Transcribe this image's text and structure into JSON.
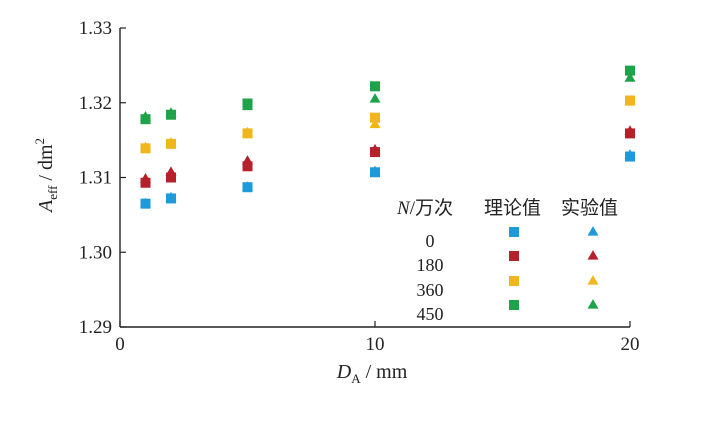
{
  "chart_data": {
    "type": "scatter",
    "xlabel": {
      "var": "D",
      "sub": "A",
      "unit": " / mm"
    },
    "ylabel": {
      "var": "A",
      "sub": "eff",
      "unit": " / dm",
      "sup": "2"
    },
    "xlim": [
      0,
      20
    ],
    "ylim": [
      1.29,
      1.33
    ],
    "xticks": [
      "0",
      "10",
      "20"
    ],
    "xtick_values": [
      0,
      10,
      20
    ],
    "yticks": [
      "1.29",
      "1.30",
      "1.31",
      "1.32",
      "1.33"
    ],
    "ytick_values": [
      1.29,
      1.3,
      1.31,
      1.32,
      1.33
    ],
    "grid": false,
    "legend": {
      "position": "lower-right",
      "n_header": {
        "var": "N",
        "text": "/万次"
      },
      "theory_header": "理论值",
      "experiment_header": "实验值",
      "entries": [
        "0",
        "180",
        "360",
        "450"
      ]
    },
    "series": [
      {
        "label": "0",
        "color": "#1f9ad8",
        "x": [
          1,
          2,
          5,
          10,
          20
        ],
        "theory": [
          1.3065,
          1.3072,
          1.3087,
          1.3107,
          1.3128
        ],
        "experiment": [
          1.3065,
          1.3073,
          1.3087,
          1.3108,
          1.313
        ]
      },
      {
        "label": "180",
        "color": "#b5202a",
        "x": [
          1,
          2,
          5,
          10,
          20
        ],
        "theory": [
          1.3093,
          1.31,
          1.3115,
          1.3134,
          1.3159
        ],
        "experiment": [
          1.3098,
          1.3107,
          1.3122,
          1.3137,
          1.3162
        ]
      },
      {
        "label": "360",
        "color": "#f0b71c",
        "x": [
          1,
          2,
          5,
          10,
          20
        ],
        "theory": [
          1.3139,
          1.3145,
          1.3159,
          1.318,
          1.3203
        ],
        "experiment": [
          1.314,
          1.3146,
          1.316,
          1.3171,
          1.3201
        ]
      },
      {
        "label": "450",
        "color": "#1ea24a",
        "x": [
          1,
          2,
          5,
          10,
          20
        ],
        "theory": [
          1.3178,
          1.3184,
          1.3199,
          1.3222,
          1.3243
        ],
        "experiment": [
          1.3181,
          1.3186,
          1.3195,
          1.3205,
          1.3233
        ]
      }
    ]
  }
}
